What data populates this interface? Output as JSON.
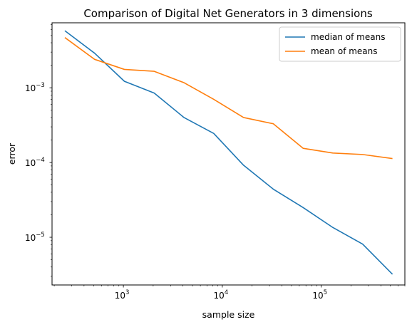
{
  "chart_data": {
    "type": "line",
    "title": "Comparison of Digital Net Generators in 3 dimensions",
    "xlabel": "sample size",
    "ylabel": "error",
    "xscale": "log",
    "yscale": "log",
    "xlim": [
      190,
      700000
    ],
    "ylim": [
      2.3e-06,
      0.0074
    ],
    "x_major_ticks": [
      {
        "value": 1000,
        "base": "10",
        "exp": "3"
      },
      {
        "value": 10000,
        "base": "10",
        "exp": "4"
      },
      {
        "value": 100000,
        "base": "10",
        "exp": "5"
      }
    ],
    "y_major_ticks": [
      {
        "value": 0.001,
        "base": "10",
        "exp": "−3"
      },
      {
        "value": 0.0001,
        "base": "10",
        "exp": "−4"
      },
      {
        "value": 1e-05,
        "base": "10",
        "exp": "−5"
      }
    ],
    "grid": false,
    "legend_position": "upper-right",
    "x": [
      256,
      512,
      1024,
      2048,
      4096,
      8192,
      16384,
      32768,
      65536,
      131072,
      262144,
      524288
    ],
    "series": [
      {
        "name": "median of means",
        "color": "#1f77b4",
        "values": [
          0.0058,
          0.0029,
          0.00122,
          0.00085,
          0.0004,
          0.000245,
          9.2e-05,
          4.4e-05,
          2.5e-05,
          1.35e-05,
          8.1e-06,
          3.2e-06
        ]
      },
      {
        "name": "mean of means",
        "color": "#ff7f0e",
        "values": [
          0.0047,
          0.0024,
          0.00176,
          0.00166,
          0.00117,
          0.0007,
          0.0004,
          0.00033,
          0.000155,
          0.000134,
          0.000128,
          0.000113
        ]
      }
    ]
  }
}
